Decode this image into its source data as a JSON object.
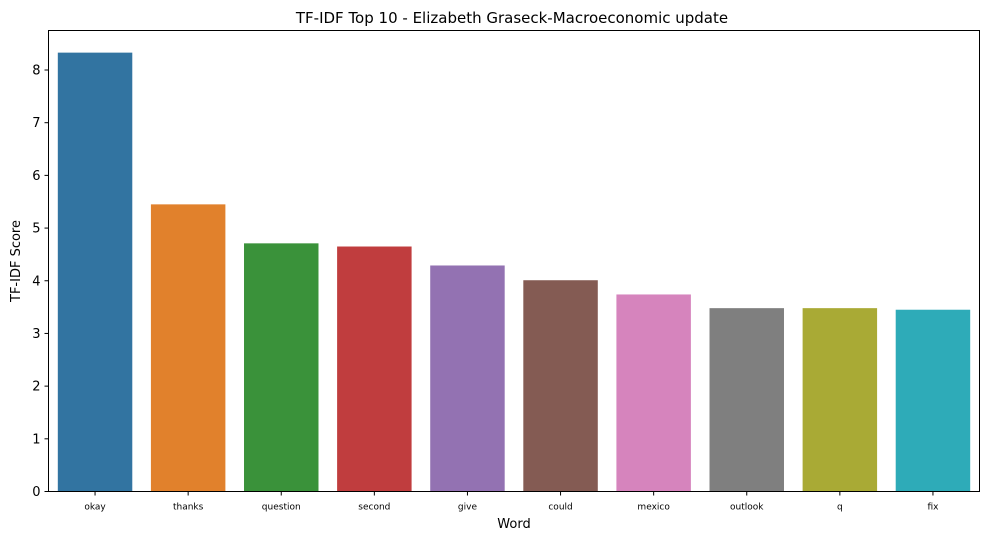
{
  "chart_data": {
    "type": "bar",
    "title": "TF-IDF Top 10 - Elizabeth Graseck-Macroeconomic update",
    "xlabel": "Word",
    "ylabel": "TF-IDF Score",
    "categories": [
      "okay",
      "thanks",
      "question",
      "second",
      "give",
      "could",
      "mexico",
      "outlook",
      "q",
      "fix"
    ],
    "values": [
      8.33,
      5.45,
      4.71,
      4.65,
      4.29,
      4.01,
      3.74,
      3.48,
      3.48,
      3.45
    ],
    "colors": [
      "#3274a1",
      "#e1812c",
      "#3a923a",
      "#c03d3e",
      "#9372b2",
      "#845b53",
      "#d684bd",
      "#7f7f7f",
      "#a9aa35",
      "#2eabb8"
    ],
    "yticks": [
      0,
      1,
      2,
      3,
      4,
      5,
      6,
      7,
      8
    ],
    "ylim": [
      0,
      8.75
    ],
    "grid": false,
    "legend": "none"
  }
}
